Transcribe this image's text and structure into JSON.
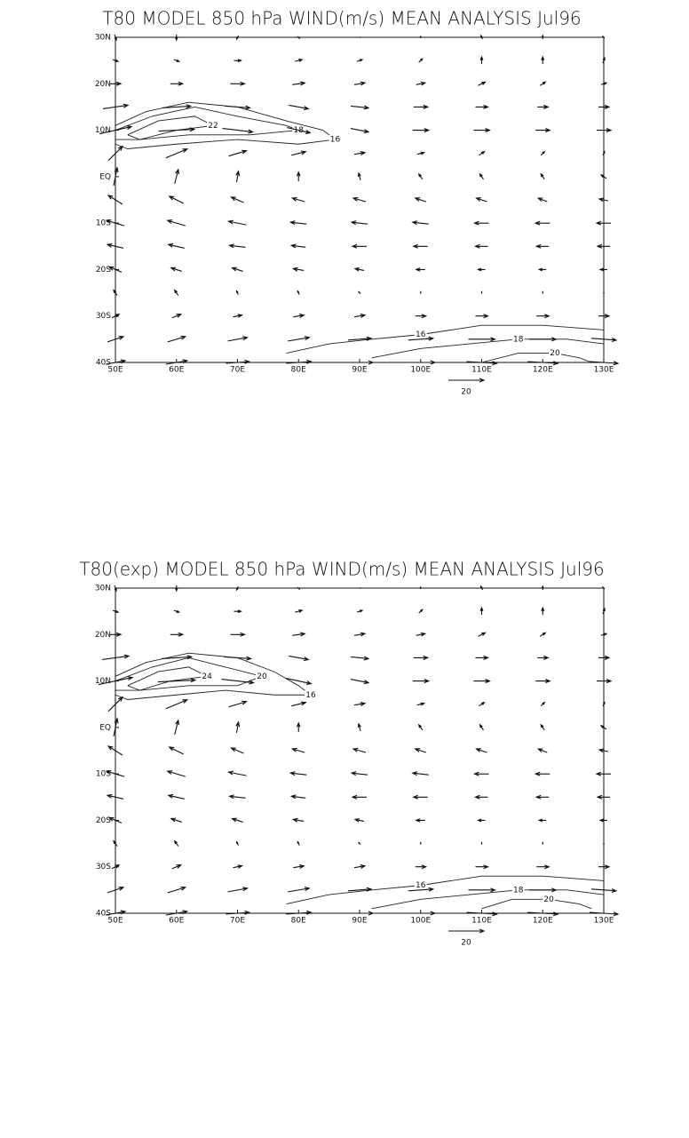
{
  "panels": [
    {
      "title": "T80 MODEL 850 hPa WIND(m/s) MEAN ANALYSIS Jul96",
      "lonlim": [
        50,
        130
      ],
      "latlim": [
        -40,
        30
      ],
      "lat_ticks": [
        {
          "value": 30,
          "label": "30N"
        },
        {
          "value": 20,
          "label": "20N"
        },
        {
          "value": 10,
          "label": "10N"
        },
        {
          "value": 0,
          "label": "EQ"
        },
        {
          "value": -10,
          "label": "10S"
        },
        {
          "value": -20,
          "label": "20S"
        },
        {
          "value": -30,
          "label": "30S"
        },
        {
          "value": -40,
          "label": "40S"
        }
      ],
      "lon_ticks": [
        {
          "value": 50,
          "label": "50E"
        },
        {
          "value": 60,
          "label": "60E"
        },
        {
          "value": 70,
          "label": "70E"
        },
        {
          "value": 80,
          "label": "80E"
        },
        {
          "value": 90,
          "label": "90E"
        },
        {
          "value": 100,
          "label": "100E"
        },
        {
          "value": 110,
          "label": "110E"
        },
        {
          "value": 120,
          "label": "120E"
        },
        {
          "value": 130,
          "label": "130E"
        }
      ],
      "lats": [
        30,
        25,
        20,
        15,
        10,
        5,
        0,
        -5,
        -10,
        -15,
        -20,
        -25,
        -30,
        -35,
        -40
      ],
      "lons": [
        50,
        60,
        70,
        80,
        90,
        100,
        110,
        120,
        130
      ],
      "u": [
        [
          1,
          0,
          -1,
          1,
          1,
          0,
          -1,
          0,
          -1
        ],
        [
          3,
          3,
          4,
          4,
          3,
          2,
          0,
          0,
          1
        ],
        [
          6,
          7,
          8,
          7,
          6,
          5,
          4,
          3,
          3
        ],
        [
          14,
          16,
          14,
          11,
          10,
          8,
          7,
          6,
          6
        ],
        [
          18,
          20,
          17,
          13,
          10,
          9,
          9,
          8,
          8
        ],
        [
          8,
          12,
          10,
          8,
          6,
          4,
          3,
          2,
          1
        ],
        [
          2,
          2,
          1,
          0,
          -1,
          -2,
          -2,
          -2,
          -3
        ],
        [
          -8,
          -8,
          -7,
          -7,
          -7,
          -6,
          -6,
          -5,
          -5
        ],
        [
          -10,
          -10,
          -10,
          -9,
          -9,
          -9,
          -8,
          -8,
          -8
        ],
        [
          -9,
          -9,
          -9,
          -8,
          -8,
          -8,
          -7,
          -7,
          -7
        ],
        [
          -7,
          -6,
          -6,
          -6,
          -5,
          -5,
          -4,
          -4,
          -4
        ],
        [
          -2,
          -2,
          -1,
          -1,
          -1,
          0,
          0,
          0,
          0
        ],
        [
          4,
          5,
          5,
          6,
          6,
          6,
          7,
          7,
          6
        ],
        [
          9,
          10,
          11,
          12,
          13,
          14,
          15,
          15,
          14
        ],
        [
          11,
          12,
          13,
          14,
          15,
          16,
          17,
          17,
          16
        ]
      ],
      "v": [
        [
          -3,
          -3,
          -2,
          -1,
          0,
          1,
          2,
          2,
          1
        ],
        [
          -1,
          -1,
          0,
          1,
          1,
          2,
          4,
          4,
          3
        ],
        [
          0,
          0,
          0,
          1,
          1,
          1,
          2,
          2,
          1
        ],
        [
          2,
          1,
          -1,
          -2,
          -1,
          0,
          0,
          0,
          0
        ],
        [
          4,
          1,
          -2,
          -3,
          -2,
          0,
          0,
          0,
          0
        ],
        [
          8,
          5,
          3,
          2,
          1,
          1,
          2,
          2,
          2
        ],
        [
          10,
          8,
          6,
          5,
          4,
          3,
          3,
          3,
          2
        ],
        [
          5,
          4,
          3,
          2,
          2,
          2,
          2,
          2,
          1
        ],
        [
          3,
          3,
          2,
          1,
          1,
          1,
          0,
          0,
          0
        ],
        [
          2,
          2,
          1,
          1,
          0,
          0,
          0,
          0,
          0
        ],
        [
          3,
          2,
          2,
          1,
          1,
          0,
          0,
          0,
          0
        ],
        [
          3,
          3,
          2,
          2,
          1,
          1,
          1,
          1,
          0
        ],
        [
          2,
          2,
          1,
          1,
          1,
          0,
          0,
          0,
          0
        ],
        [
          3,
          3,
          2,
          2,
          1,
          1,
          0,
          0,
          -1
        ],
        [
          2,
          2,
          1,
          1,
          0,
          0,
          -1,
          -1,
          -1
        ]
      ],
      "contours": [
        {
          "level": 16,
          "points": [
            [
              50,
              11
            ],
            [
              55,
              14
            ],
            [
              62,
              16
            ],
            [
              70,
              15
            ],
            [
              78,
              12
            ],
            [
              84,
              10
            ],
            [
              86,
              8
            ],
            [
              80,
              7
            ],
            [
              70,
              8
            ],
            [
              60,
              7
            ],
            [
              52,
              6
            ],
            [
              50,
              7
            ]
          ]
        },
        {
          "level": 18,
          "points": [
            [
              50,
              10
            ],
            [
              56,
              13
            ],
            [
              63,
              15
            ],
            [
              70,
              13
            ],
            [
              78,
              11
            ],
            [
              80,
              10
            ],
            [
              72,
              9
            ],
            [
              62,
              9
            ],
            [
              54,
              8
            ],
            [
              50,
              8
            ]
          ]
        },
        {
          "level": 22,
          "points": [
            [
              52,
              9
            ],
            [
              57,
              12
            ],
            [
              63,
              13
            ],
            [
              66,
              11
            ],
            [
              60,
              10
            ],
            [
              54,
              8
            ],
            [
              52,
              9
            ]
          ]
        },
        {
          "level": 16,
          "points": [
            [
              78,
              -38
            ],
            [
              85,
              -36
            ],
            [
              92,
              -35
            ],
            [
              100,
              -34
            ],
            [
              110,
              -32
            ],
            [
              120,
              -32
            ],
            [
              130,
              -33
            ]
          ]
        },
        {
          "level": 18,
          "points": [
            [
              92,
              -39
            ],
            [
              100,
              -37
            ],
            [
              108,
              -36
            ],
            [
              116,
              -35
            ],
            [
              124,
              -35
            ],
            [
              130,
              -36
            ]
          ]
        },
        {
          "level": 20,
          "points": [
            [
              110,
              -40
            ],
            [
              116,
              -38
            ],
            [
              122,
              -38
            ],
            [
              126,
              -39
            ],
            [
              128,
              -40
            ]
          ]
        }
      ],
      "ref_vector": 20
    },
    {
      "title": "T80(exp) MODEL 850 hPa WIND(m/s) MEAN ANALYSIS Jul96",
      "lonlim": [
        50,
        130
      ],
      "latlim": [
        -40,
        30
      ],
      "lat_ticks": [
        {
          "value": 30,
          "label": "30N"
        },
        {
          "value": 20,
          "label": "20N"
        },
        {
          "value": 10,
          "label": "10N"
        },
        {
          "value": 0,
          "label": "EQ"
        },
        {
          "value": -10,
          "label": "10S"
        },
        {
          "value": -20,
          "label": "20S"
        },
        {
          "value": -30,
          "label": "30S"
        },
        {
          "value": -40,
          "label": "40S"
        }
      ],
      "lon_ticks": [
        {
          "value": 50,
          "label": "50E"
        },
        {
          "value": 60,
          "label": "60E"
        },
        {
          "value": 70,
          "label": "70E"
        },
        {
          "value": 80,
          "label": "80E"
        },
        {
          "value": 90,
          "label": "90E"
        },
        {
          "value": 100,
          "label": "100E"
        },
        {
          "value": 110,
          "label": "110E"
        },
        {
          "value": 120,
          "label": "120E"
        },
        {
          "value": 130,
          "label": "130E"
        }
      ],
      "lats": [
        30,
        25,
        20,
        15,
        10,
        5,
        0,
        -5,
        -10,
        -15,
        -20,
        -25,
        -30,
        -35,
        -40
      ],
      "lons": [
        50,
        60,
        70,
        80,
        90,
        100,
        110,
        120,
        130
      ],
      "u": [
        [
          1,
          0,
          -1,
          1,
          1,
          0,
          -1,
          0,
          -1
        ],
        [
          3,
          3,
          4,
          4,
          3,
          2,
          0,
          0,
          1
        ],
        [
          6,
          7,
          8,
          7,
          6,
          5,
          4,
          3,
          3
        ],
        [
          15,
          17,
          15,
          11,
          10,
          8,
          7,
          6,
          6
        ],
        [
          19,
          21,
          18,
          14,
          10,
          9,
          9,
          8,
          8
        ],
        [
          8,
          12,
          10,
          8,
          6,
          4,
          3,
          2,
          1
        ],
        [
          2,
          2,
          1,
          0,
          -1,
          -2,
          -2,
          -2,
          -3
        ],
        [
          -8,
          -8,
          -7,
          -7,
          -7,
          -6,
          -6,
          -5,
          -5
        ],
        [
          -10,
          -10,
          -10,
          -9,
          -9,
          -9,
          -8,
          -8,
          -8
        ],
        [
          -9,
          -9,
          -9,
          -8,
          -8,
          -8,
          -7,
          -7,
          -7
        ],
        [
          -7,
          -6,
          -6,
          -6,
          -5,
          -5,
          -4,
          -4,
          -4
        ],
        [
          -2,
          -2,
          -1,
          -1,
          -1,
          0,
          0,
          0,
          0
        ],
        [
          4,
          5,
          5,
          6,
          6,
          6,
          7,
          7,
          6
        ],
        [
          9,
          10,
          11,
          12,
          13,
          14,
          15,
          15,
          14
        ],
        [
          11,
          12,
          13,
          14,
          15,
          16,
          17,
          17,
          16
        ]
      ],
      "v": [
        [
          -3,
          -3,
          -2,
          -1,
          0,
          1,
          2,
          2,
          1
        ],
        [
          -1,
          -1,
          0,
          1,
          1,
          2,
          4,
          4,
          3
        ],
        [
          0,
          0,
          0,
          1,
          1,
          1,
          2,
          2,
          1
        ],
        [
          2,
          1,
          -1,
          -2,
          -1,
          0,
          0,
          0,
          0
        ],
        [
          4,
          1,
          -2,
          -3,
          -2,
          0,
          0,
          0,
          0
        ],
        [
          8,
          5,
          3,
          2,
          1,
          1,
          2,
          2,
          2
        ],
        [
          10,
          8,
          6,
          5,
          4,
          3,
          3,
          3,
          2
        ],
        [
          5,
          4,
          3,
          2,
          2,
          2,
          2,
          2,
          1
        ],
        [
          3,
          3,
          2,
          1,
          1,
          1,
          0,
          0,
          0
        ],
        [
          2,
          2,
          1,
          1,
          0,
          0,
          0,
          0,
          0
        ],
        [
          3,
          2,
          2,
          1,
          1,
          0,
          0,
          0,
          0
        ],
        [
          3,
          3,
          2,
          2,
          1,
          1,
          1,
          1,
          0
        ],
        [
          2,
          2,
          1,
          1,
          1,
          0,
          0,
          0,
          0
        ],
        [
          3,
          3,
          2,
          2,
          1,
          1,
          0,
          0,
          -1
        ],
        [
          2,
          2,
          1,
          1,
          0,
          0,
          -1,
          -1,
          -1
        ]
      ],
      "contours": [
        {
          "level": 16,
          "points": [
            [
              50,
              11
            ],
            [
              55,
              14
            ],
            [
              62,
              16
            ],
            [
              70,
              15
            ],
            [
              76,
              12
            ],
            [
              80,
              9
            ],
            [
              82,
              7
            ],
            [
              76,
              7
            ],
            [
              68,
              8
            ],
            [
              60,
              7
            ],
            [
              52,
              6
            ],
            [
              50,
              7
            ]
          ]
        },
        {
          "level": 20,
          "points": [
            [
              50,
              10
            ],
            [
              56,
              13
            ],
            [
              62,
              15
            ],
            [
              68,
              13
            ],
            [
              74,
              11
            ],
            [
              70,
              9
            ],
            [
              62,
              9
            ],
            [
              54,
              8
            ],
            [
              50,
              8
            ]
          ]
        },
        {
          "level": 24,
          "points": [
            [
              52,
              9
            ],
            [
              57,
              12
            ],
            [
              62,
              13
            ],
            [
              65,
              11
            ],
            [
              59,
              10
            ],
            [
              54,
              8
            ],
            [
              52,
              9
            ]
          ]
        },
        {
          "level": 16,
          "points": [
            [
              78,
              -38
            ],
            [
              85,
              -36
            ],
            [
              92,
              -35
            ],
            [
              100,
              -34
            ],
            [
              110,
              -32
            ],
            [
              120,
              -32
            ],
            [
              130,
              -33
            ]
          ]
        },
        {
          "level": 18,
          "points": [
            [
              92,
              -39
            ],
            [
              100,
              -37
            ],
            [
              108,
              -36
            ],
            [
              116,
              -35
            ],
            [
              124,
              -35
            ],
            [
              130,
              -36
            ]
          ]
        },
        {
          "level": 20,
          "points": [
            [
              110,
              -39
            ],
            [
              115,
              -37
            ],
            [
              121,
              -37
            ],
            [
              126,
              -38
            ],
            [
              128,
              -39
            ]
          ]
        }
      ],
      "ref_vector": 20
    }
  ]
}
